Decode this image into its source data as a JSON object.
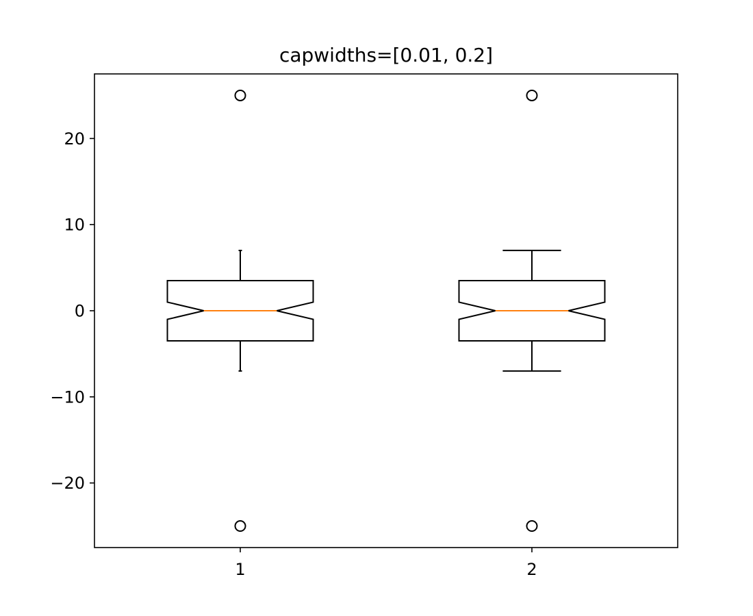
{
  "chart_data": {
    "type": "boxplot",
    "title": "capwidths=[0.01, 0.2]",
    "xlabel": "",
    "ylabel": "",
    "categories": [
      "1",
      "2"
    ],
    "capwidths": [
      0.01,
      0.2
    ],
    "notch": true,
    "ylim": [
      -27.5,
      27.5
    ],
    "xlim": [
      0.5,
      2.5
    ],
    "yticks": [
      {
        "value": -20,
        "label": "−20"
      },
      {
        "value": -10,
        "label": "−10"
      },
      {
        "value": 0,
        "label": "0"
      },
      {
        "value": 10,
        "label": "10"
      },
      {
        "value": 20,
        "label": "20"
      }
    ],
    "boxes": [
      {
        "label": "1",
        "x": 1,
        "whislo": -7,
        "q1": -3.5,
        "med": 0,
        "q3": 3.5,
        "whishi": 7,
        "notch_low": -1,
        "notch_high": 1,
        "fliers": [
          25,
          -25
        ]
      },
      {
        "label": "2",
        "x": 2,
        "whislo": -7,
        "q1": -3.5,
        "med": 0,
        "q3": 3.5,
        "whishi": 7,
        "notch_low": -1,
        "notch_high": 1,
        "fliers": [
          25,
          -25
        ]
      }
    ],
    "colors": {
      "box": "#000000",
      "median": "#ff7f0e",
      "flier": "#000000"
    },
    "grid": false
  }
}
